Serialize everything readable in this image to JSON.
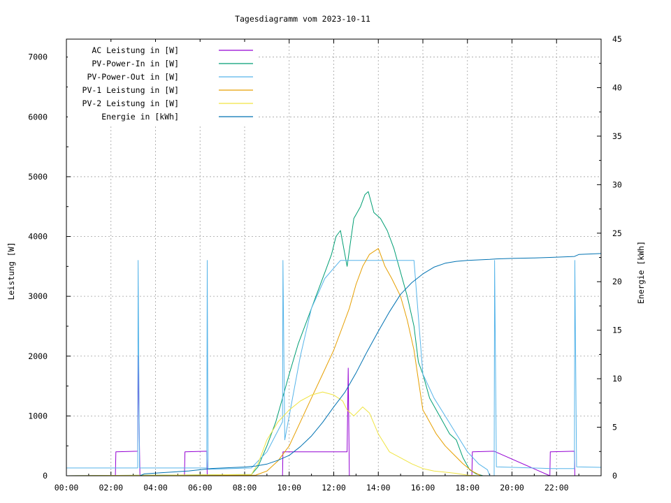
{
  "chart_data": {
    "type": "line",
    "title": "Tagesdiagramm vom 2023-10-11",
    "ylabel": "Leistung [W]",
    "y2label": "Energie [kWh]",
    "xlim": [
      0,
      24
    ],
    "ylim": [
      0,
      7300
    ],
    "y2lim": [
      0,
      45
    ],
    "x_ticks": [
      "00:00",
      "02:00",
      "04:00",
      "06:00",
      "08:00",
      "10:00",
      "12:00",
      "14:00",
      "16:00",
      "18:00",
      "20:00",
      "22:00"
    ],
    "y_ticks": [
      "0",
      "1000",
      "2000",
      "3000",
      "4000",
      "5000",
      "6000",
      "7000"
    ],
    "y2_ticks": [
      "0",
      "5",
      "10",
      "15",
      "20",
      "25",
      "30",
      "35",
      "40",
      "45"
    ],
    "grid": true,
    "legend_position": "top-left",
    "series": [
      {
        "name": "AC Leistung in [W]",
        "axis": "y",
        "color": "#9400d3",
        "x": [
          0,
          2.2,
          2.22,
          3.2,
          3.22,
          3.3,
          5.3,
          5.32,
          6.3,
          6.32,
          9.7,
          9.72,
          12.6,
          12.65,
          12.7,
          18.2,
          18.22,
          19.2,
          21.7,
          21.72,
          22.8,
          22.82,
          24
        ],
        "y": [
          0,
          0,
          400,
          410,
          2000,
          0,
          0,
          400,
          410,
          0,
          0,
          400,
          400,
          1800,
          0,
          0,
          400,
          410,
          0,
          400,
          410,
          0,
          0
        ]
      },
      {
        "name": "PV-Power-In in [W]",
        "axis": "y",
        "color": "#009e73",
        "x": [
          0,
          8.3,
          8.6,
          9.0,
          9.4,
          9.7,
          10.0,
          10.4,
          10.8,
          11.2,
          11.6,
          11.9,
          12.1,
          12.3,
          12.6,
          12.9,
          13.2,
          13.4,
          13.55,
          13.8,
          14.1,
          14.4,
          14.7,
          15.0,
          15.3,
          15.6,
          15.8,
          16.0,
          16.3,
          16.6,
          16.9,
          17.2,
          17.5,
          17.8,
          18.1,
          18.4,
          18.7,
          24
        ],
        "y": [
          0,
          20,
          150,
          500,
          900,
          1300,
          1700,
          2200,
          2600,
          3000,
          3400,
          3700,
          4000,
          4100,
          3500,
          4300,
          4500,
          4700,
          4750,
          4400,
          4300,
          4100,
          3800,
          3400,
          3000,
          2500,
          1900,
          1700,
          1300,
          1100,
          900,
          700,
          600,
          300,
          100,
          30,
          0,
          0
        ]
      },
      {
        "name": "PV-Power-Out in [W]",
        "axis": "y",
        "color": "#56b4e9",
        "x": [
          0,
          3.2,
          3.22,
          3.28,
          5.8,
          6.3,
          6.32,
          6.36,
          6.5,
          8.3,
          9.0,
          9.7,
          9.72,
          9.8,
          10.5,
          11.0,
          11.6,
          12.3,
          12.6,
          12.9,
          13.3,
          14.0,
          14.7,
          15.5,
          15.6,
          16.0,
          16.5,
          17.0,
          17.5,
          18.0,
          18.5,
          18.9,
          19.0,
          19.2,
          19.22,
          19.3,
          21.8,
          22.8,
          22.82,
          22.9,
          24
        ],
        "y": [
          130,
          130,
          3600,
          130,
          130,
          130,
          3600,
          110,
          110,
          130,
          400,
          900,
          3600,
          600,
          2000,
          2800,
          3300,
          3600,
          3600,
          3600,
          3600,
          3600,
          3600,
          3600,
          3600,
          1700,
          1300,
          1000,
          700,
          400,
          200,
          100,
          0,
          0,
          3600,
          150,
          120,
          120,
          3600,
          150,
          140
        ]
      },
      {
        "name": "PV-1 Leistung in [W]",
        "axis": "y",
        "color": "#e69f00",
        "x": [
          0,
          8.5,
          9.0,
          9.5,
          10.0,
          10.5,
          11.0,
          11.5,
          12.0,
          12.4,
          12.7,
          13.0,
          13.3,
          13.6,
          14.0,
          14.3,
          14.6,
          15.0,
          15.3,
          15.6,
          15.8,
          16.0,
          16.3,
          16.6,
          17.0,
          17.4,
          17.8,
          18.2,
          18.6,
          24
        ],
        "y": [
          0,
          10,
          80,
          250,
          500,
          900,
          1300,
          1700,
          2100,
          2500,
          2800,
          3200,
          3500,
          3700,
          3800,
          3500,
          3300,
          3000,
          2600,
          2100,
          1600,
          1100,
          900,
          700,
          500,
          350,
          200,
          80,
          0,
          0
        ]
      },
      {
        "name": "PV-2 Leistung in [W]",
        "axis": "y",
        "color": "#f0e442",
        "x": [
          0,
          8.3,
          8.6,
          9.0,
          9.5,
          10.0,
          10.5,
          11.0,
          11.5,
          12.0,
          12.4,
          12.6,
          12.9,
          13.3,
          13.6,
          14.0,
          14.5,
          15.0,
          15.5,
          16.0,
          16.5,
          17.0,
          17.5,
          18.0,
          18.5,
          24
        ],
        "y": [
          0,
          20,
          200,
          600,
          900,
          1100,
          1250,
          1350,
          1400,
          1350,
          1250,
          1100,
          1000,
          1150,
          1050,
          700,
          400,
          300,
          200,
          120,
          80,
          60,
          40,
          10,
          0,
          0
        ]
      },
      {
        "name": "Energie in [kWh]",
        "axis": "y2",
        "color": "#0072b2",
        "x": [
          0,
          3.3,
          3.5,
          5.5,
          6.5,
          8.0,
          8.5,
          9.0,
          9.5,
          10.0,
          10.5,
          11.0,
          11.5,
          12.0,
          12.5,
          13.0,
          13.5,
          14.0,
          14.5,
          15.0,
          15.5,
          16.0,
          16.5,
          17.0,
          17.5,
          18.0,
          18.5,
          19.0,
          19.3,
          20.0,
          21.0,
          21.7,
          22.8,
          23.0,
          24
        ],
        "y": [
          0,
          0,
          0.2,
          0.5,
          0.75,
          0.9,
          1.0,
          1.2,
          1.6,
          2.1,
          3.0,
          4.1,
          5.5,
          7.1,
          8.6,
          10.6,
          12.8,
          14.9,
          16.9,
          18.7,
          19.9,
          20.8,
          21.5,
          21.9,
          22.1,
          22.2,
          22.25,
          22.3,
          22.35,
          22.4,
          22.45,
          22.5,
          22.6,
          22.8,
          22.9
        ]
      }
    ]
  }
}
